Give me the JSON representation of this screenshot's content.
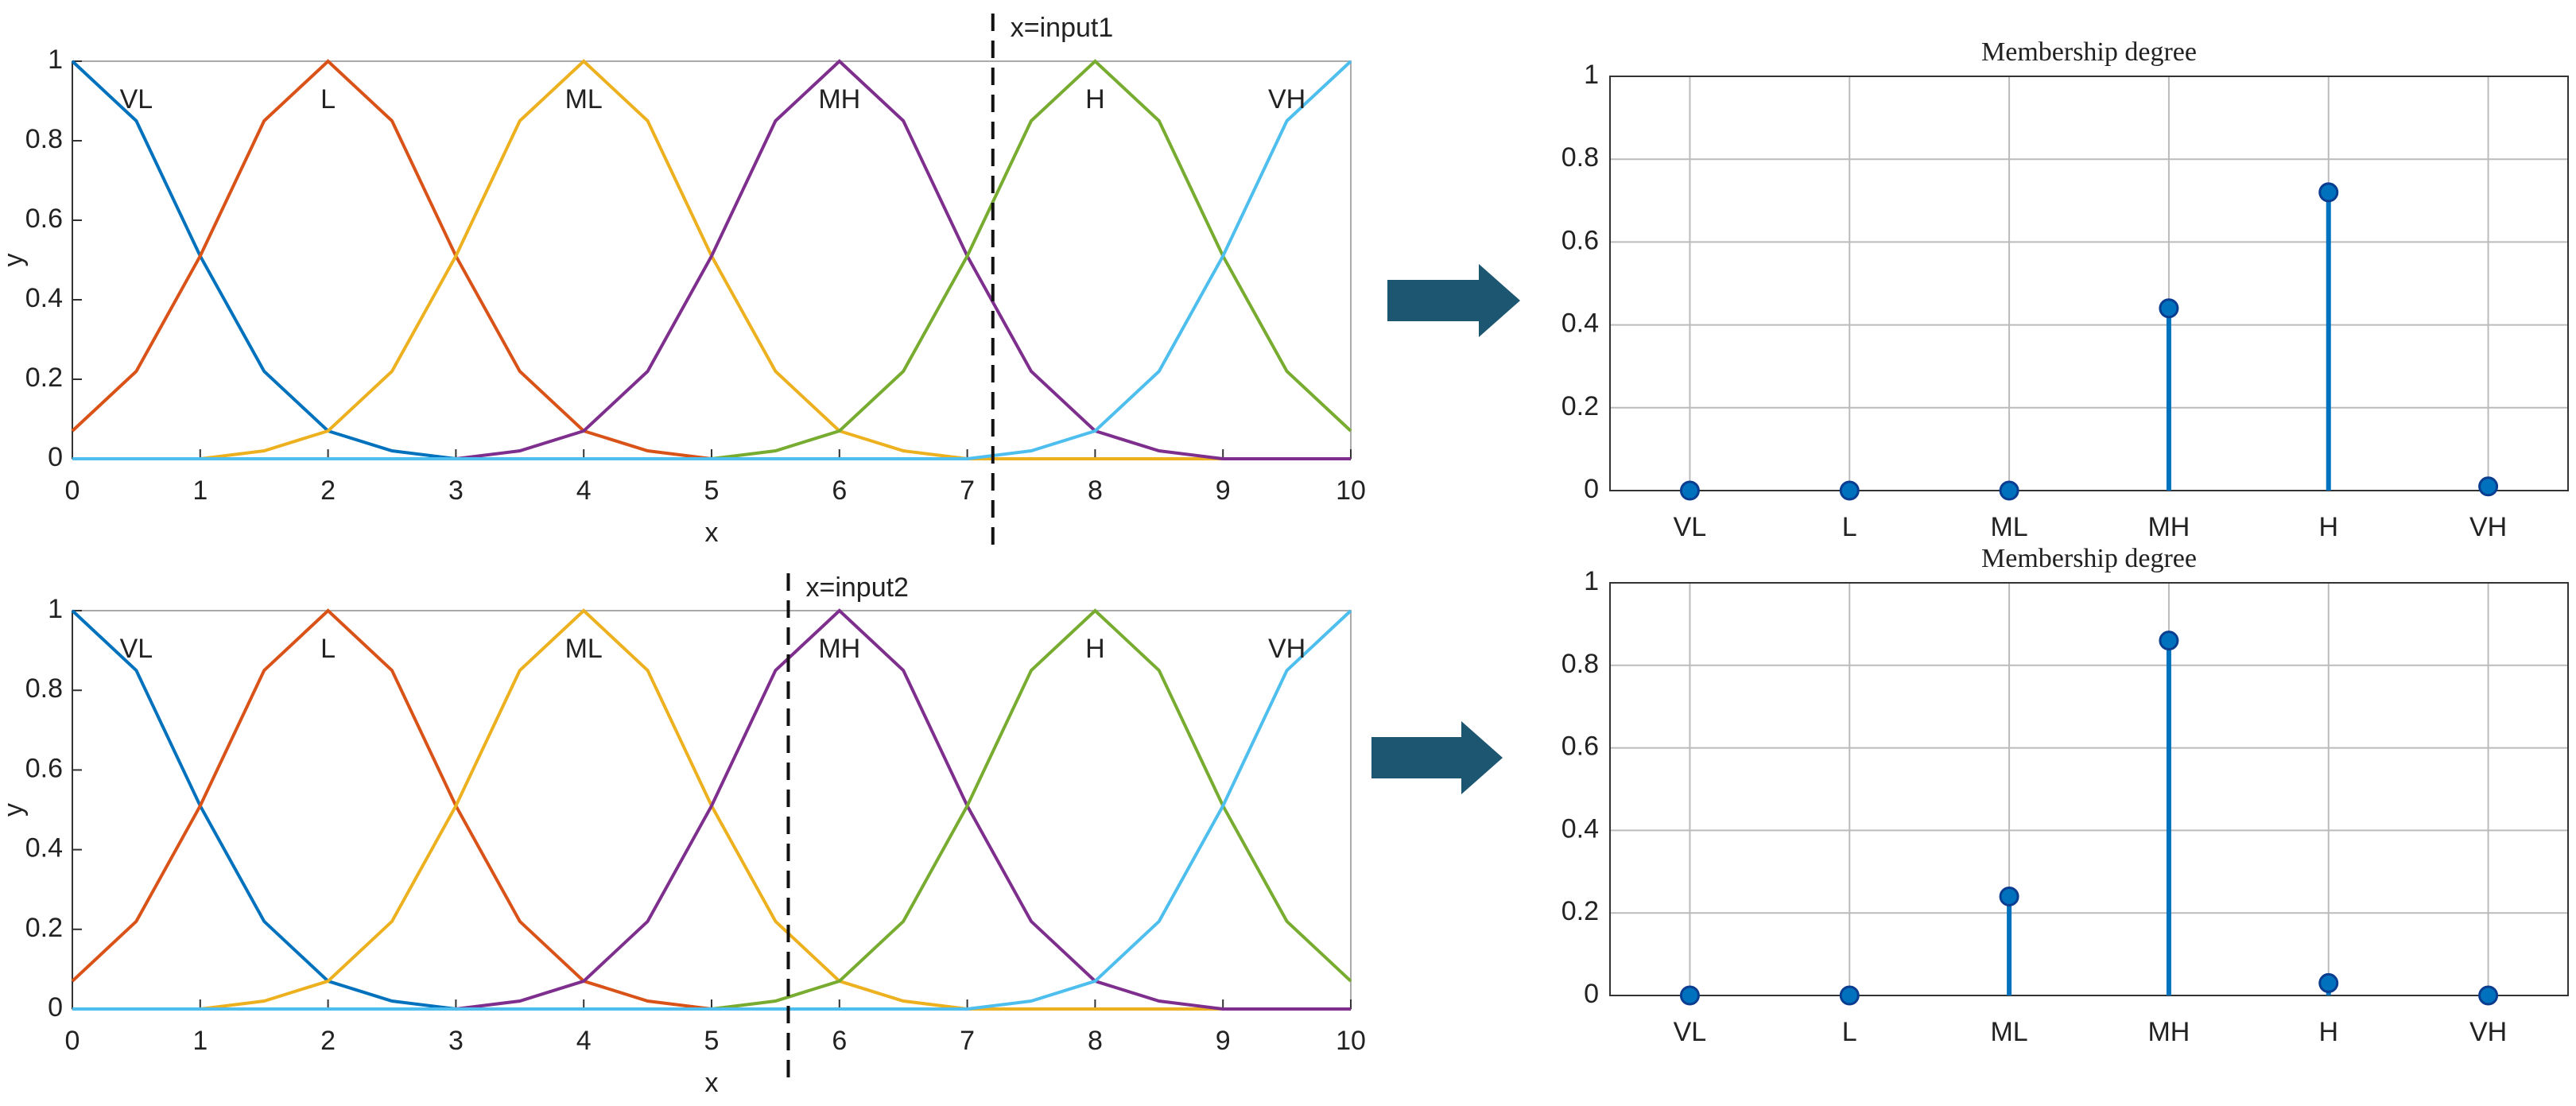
{
  "chart_data": [
    {
      "type": "line",
      "xlabel": "x",
      "ylabel": "y",
      "annotation": "x=input1",
      "marker_x": 7.2,
      "x": [
        0,
        0.5,
        1,
        1.5,
        2,
        2.5,
        3,
        3.5,
        4,
        4.5,
        5,
        5.5,
        6,
        6.5,
        7,
        7.5,
        8,
        8.5,
        9,
        9.5,
        10
      ],
      "xlim": [
        0,
        10
      ],
      "ylim": [
        0,
        1
      ],
      "xticks": [
        0,
        1,
        2,
        3,
        4,
        5,
        6,
        7,
        8,
        9,
        10
      ],
      "yticks": [
        0,
        0.2,
        0.4,
        0.6,
        0.8,
        1
      ],
      "series": [
        {
          "name": "VL",
          "color": "#0072BD",
          "values": [
            1,
            0.85,
            0.51,
            0.22,
            0.07,
            0.02,
            0,
            0,
            0,
            0,
            0,
            0,
            0,
            0,
            0,
            0,
            0,
            0,
            0,
            0,
            0
          ]
        },
        {
          "name": "L",
          "color": "#D95319",
          "values": [
            0.07,
            0.22,
            0.51,
            0.85,
            1,
            0.85,
            0.51,
            0.22,
            0.07,
            0.02,
            0,
            0,
            0,
            0,
            0,
            0,
            0,
            0,
            0,
            0,
            0
          ]
        },
        {
          "name": "ML",
          "color": "#EDB120",
          "values": [
            0,
            0,
            0,
            0.02,
            0.07,
            0.22,
            0.51,
            0.85,
            1,
            0.85,
            0.51,
            0.22,
            0.07,
            0.02,
            0,
            0,
            0,
            0,
            0,
            0,
            0
          ]
        },
        {
          "name": "MH",
          "color": "#7E2F8E",
          "values": [
            0,
            0,
            0,
            0,
            0,
            0,
            0,
            0.02,
            0.07,
            0.22,
            0.51,
            0.85,
            1,
            0.85,
            0.51,
            0.22,
            0.07,
            0.02,
            0,
            0,
            0
          ]
        },
        {
          "name": "H",
          "color": "#77AC30",
          "values": [
            0,
            0,
            0,
            0,
            0,
            0,
            0,
            0,
            0,
            0,
            0,
            0.02,
            0.07,
            0.22,
            0.51,
            0.85,
            1,
            0.85,
            0.51,
            0.22,
            0.07
          ]
        },
        {
          "name": "VH",
          "color": "#4DBEEE",
          "values": [
            0,
            0,
            0,
            0,
            0,
            0,
            0,
            0,
            0,
            0,
            0,
            0,
            0,
            0,
            0,
            0.02,
            0.07,
            0.22,
            0.51,
            0.85,
            1
          ]
        }
      ]
    },
    {
      "type": "line",
      "xlabel": "x",
      "ylabel": "y",
      "annotation": "x=input2",
      "marker_x": 5.6,
      "x": [
        0,
        0.5,
        1,
        1.5,
        2,
        2.5,
        3,
        3.5,
        4,
        4.5,
        5,
        5.5,
        6,
        6.5,
        7,
        7.5,
        8,
        8.5,
        9,
        9.5,
        10
      ],
      "xlim": [
        0,
        10
      ],
      "ylim": [
        0,
        1
      ],
      "xticks": [
        0,
        1,
        2,
        3,
        4,
        5,
        6,
        7,
        8,
        9,
        10
      ],
      "yticks": [
        0,
        0.2,
        0.4,
        0.6,
        0.8,
        1
      ],
      "series": [
        {
          "name": "VL",
          "color": "#0072BD",
          "values": [
            1,
            0.85,
            0.51,
            0.22,
            0.07,
            0.02,
            0,
            0,
            0,
            0,
            0,
            0,
            0,
            0,
            0,
            0,
            0,
            0,
            0,
            0,
            0
          ]
        },
        {
          "name": "L",
          "color": "#D95319",
          "values": [
            0.07,
            0.22,
            0.51,
            0.85,
            1,
            0.85,
            0.51,
            0.22,
            0.07,
            0.02,
            0,
            0,
            0,
            0,
            0,
            0,
            0,
            0,
            0,
            0,
            0
          ]
        },
        {
          "name": "ML",
          "color": "#EDB120",
          "values": [
            0,
            0,
            0,
            0.02,
            0.07,
            0.22,
            0.51,
            0.85,
            1,
            0.85,
            0.51,
            0.22,
            0.07,
            0.02,
            0,
            0,
            0,
            0,
            0,
            0,
            0
          ]
        },
        {
          "name": "MH",
          "color": "#7E2F8E",
          "values": [
            0,
            0,
            0,
            0,
            0,
            0,
            0,
            0.02,
            0.07,
            0.22,
            0.51,
            0.85,
            1,
            0.85,
            0.51,
            0.22,
            0.07,
            0.02,
            0,
            0,
            0
          ]
        },
        {
          "name": "H",
          "color": "#77AC30",
          "values": [
            0,
            0,
            0,
            0,
            0,
            0,
            0,
            0,
            0,
            0,
            0,
            0.02,
            0.07,
            0.22,
            0.51,
            0.85,
            1,
            0.85,
            0.51,
            0.22,
            0.07
          ]
        },
        {
          "name": "VH",
          "color": "#4DBEEE",
          "values": [
            0,
            0,
            0,
            0,
            0,
            0,
            0,
            0,
            0,
            0,
            0,
            0,
            0,
            0,
            0,
            0.02,
            0.07,
            0.22,
            0.51,
            0.85,
            1
          ]
        }
      ]
    },
    {
      "type": "stem",
      "title": "Membership degree",
      "categories": [
        "VL",
        "L",
        "ML",
        "MH",
        "H",
        "VH"
      ],
      "values": [
        0,
        0,
        0,
        0.44,
        0.72,
        0.01
      ],
      "color": "#0072BD",
      "ylim": [
        0,
        1
      ],
      "yticks": [
        0,
        0.2,
        0.4,
        0.6,
        0.8,
        1
      ],
      "grid": true
    },
    {
      "type": "stem",
      "title": "Membership degree",
      "categories": [
        "VL",
        "L",
        "ML",
        "MH",
        "H",
        "VH"
      ],
      "values": [
        0,
        0,
        0.24,
        0.86,
        0.03,
        0
      ],
      "color": "#0072BD",
      "ylim": [
        0,
        1
      ],
      "yticks": [
        0,
        0.2,
        0.4,
        0.6,
        0.8,
        1
      ],
      "grid": true
    }
  ]
}
